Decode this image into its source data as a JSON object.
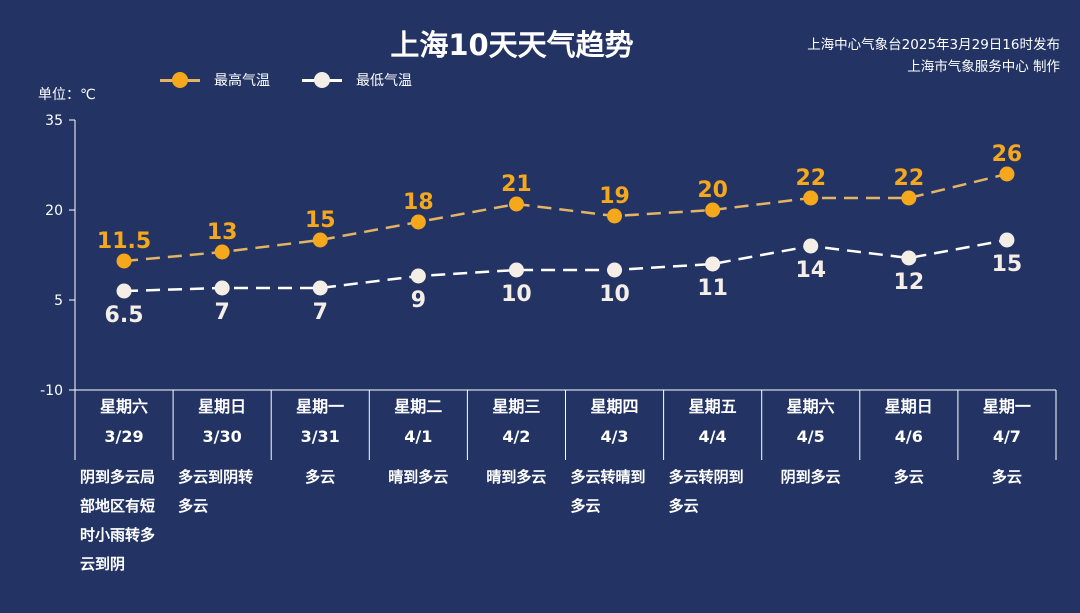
{
  "header": {
    "title": "上海10天天气趋势",
    "source_line1": "上海中心气象台2025年3月29日16时发布",
    "source_line2": "上海市气象服务中心 制作"
  },
  "legend": {
    "high_label": "最高气温",
    "low_label": "最低气温"
  },
  "unit_label": "单位：℃",
  "colors": {
    "background": "#233464",
    "high": "#F5A81C",
    "high_line": "#E3B464",
    "low": "#F5EEE6",
    "low_line": "#FFFFFF",
    "axis": "#FFFFFF"
  },
  "days": [
    {
      "weekday": "星期六",
      "date": "3/29",
      "weather": "阴到多云局部地区有短时小雨转多云到阴"
    },
    {
      "weekday": "星期日",
      "date": "3/30",
      "weather": "多云到阴转多云"
    },
    {
      "weekday": "星期一",
      "date": "3/31",
      "weather": "多云"
    },
    {
      "weekday": "星期二",
      "date": "4/1",
      "weather": "晴到多云"
    },
    {
      "weekday": "星期三",
      "date": "4/2",
      "weather": "晴到多云"
    },
    {
      "weekday": "星期四",
      "date": "4/3",
      "weather": "多云转晴到多云"
    },
    {
      "weekday": "星期五",
      "date": "4/4",
      "weather": "多云转阴到多云"
    },
    {
      "weekday": "星期六",
      "date": "4/5",
      "weather": "阴到多云"
    },
    {
      "weekday": "星期日",
      "date": "4/6",
      "weather": "多云"
    },
    {
      "weekday": "星期一",
      "date": "4/7",
      "weather": "多云"
    }
  ],
  "chart_data": {
    "type": "line",
    "title": "上海10天天气趋势",
    "xlabel": "",
    "ylabel": "单位：℃",
    "categories": [
      "星期六 3/29",
      "星期日 3/30",
      "星期一 3/31",
      "星期二 4/1",
      "星期三 4/2",
      "星期四 4/3",
      "星期五 4/4",
      "星期六 4/5",
      "星期日 4/6",
      "星期一 4/7"
    ],
    "series": [
      {
        "name": "最高气温",
        "values": [
          11.5,
          13,
          15,
          18,
          21,
          19,
          20,
          22,
          22,
          26
        ],
        "color": "#F5A81C",
        "style": "dashed",
        "labels_position": "above"
      },
      {
        "name": "最低气温",
        "values": [
          6.5,
          7,
          7,
          9,
          10,
          10,
          11,
          14,
          12,
          15
        ],
        "color": "#FFFFFF",
        "style": "dashed",
        "labels_position": "below"
      }
    ],
    "yticks": [
      35,
      20,
      5,
      -10
    ],
    "ylim": [
      -10,
      35
    ],
    "grid": false,
    "legend_position": "top-left"
  }
}
